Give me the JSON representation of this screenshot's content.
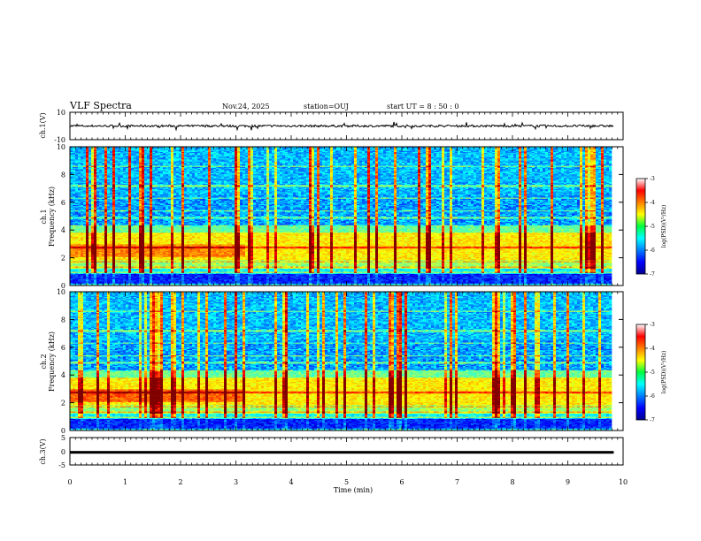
{
  "header": {
    "title": "VLF Spectra",
    "date": "Nov.24, 2025",
    "station": "station=OUJ",
    "start": "start  UT  =   8  : 50 : 0"
  },
  "chart_data": [
    {
      "type": "line",
      "name": "ch1-waveform",
      "ylabel": "ch.1(V)",
      "ylim": [
        -10,
        10
      ],
      "yticks": [
        "10",
        "-10"
      ],
      "x_range_min": [
        0,
        10
      ],
      "description_level": 0
    },
    {
      "type": "heatmap",
      "name": "ch1-spectrogram",
      "ylabel": "ch.1\nFrequency (kHz)",
      "ylabel_top": "ch.1",
      "ylabel_bottom": "Frequency (kHz)",
      "ylim_khz": [
        0,
        10
      ],
      "yticks": [
        "0",
        "2",
        "4",
        "6",
        "8",
        "10"
      ],
      "colorbar": {
        "label": "log(PSD)(V²/Hz)",
        "range": [
          -7,
          -3
        ],
        "ticks": [
          "-3",
          "-4",
          "-5",
          "-6",
          "-7"
        ]
      }
    },
    {
      "type": "heatmap",
      "name": "ch2-spectrogram",
      "ylabel": "ch.2\nFrequency (kHz)",
      "ylabel_top": "ch.2",
      "ylabel_bottom": "Frequency (kHz)",
      "ylim_khz": [
        0,
        10
      ],
      "yticks": [
        "0",
        "2",
        "4",
        "6",
        "8",
        "10"
      ],
      "colorbar": {
        "label": "log(PSD)(V²/Hz)",
        "range": [
          -7,
          -3
        ],
        "ticks": [
          "-3",
          "-4",
          "-5",
          "-6",
          "-7"
        ]
      }
    },
    {
      "type": "line",
      "name": "ch3-waveform",
      "ylabel": "ch.3(V)",
      "ylim": [
        -5,
        5
      ],
      "yticks": [
        "5",
        "0",
        "-5"
      ],
      "level": -0.4
    }
  ],
  "x_axis": {
    "label": "Time  (min)",
    "ticks": [
      "0",
      "1",
      "2",
      "3",
      "4",
      "5",
      "6",
      "7",
      "8",
      "9",
      "10"
    ],
    "range": [
      0,
      10
    ],
    "data_end": 9.83
  },
  "colorbar_label": "log(PSD)(V²/Hz)"
}
